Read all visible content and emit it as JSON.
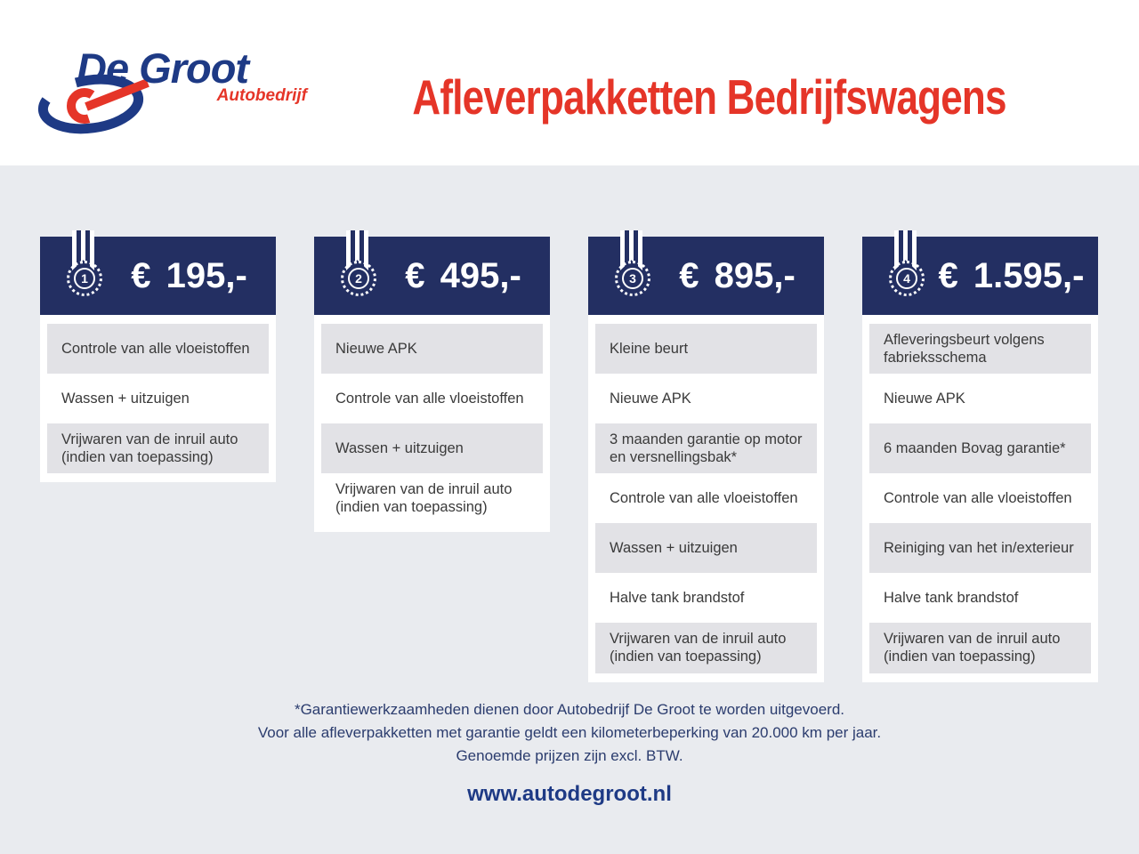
{
  "brand": {
    "name": "De Groot",
    "subtitle": "Autobedrijf"
  },
  "title": "Afleverpakketten Bedrijfswagens",
  "packages": [
    {
      "number": "1",
      "price": "€ 195,-",
      "items": [
        "Controle van alle vloeistoffen",
        "Wassen + uitzuigen",
        "Vrijwaren van de inruil auto (indien van toepassing)"
      ]
    },
    {
      "number": "2",
      "price": "€ 495,-",
      "items": [
        "Nieuwe APK",
        "Controle van alle vloeistoffen",
        "Wassen + uitzuigen",
        "Vrijwaren van de inruil auto (indien van toepassing)"
      ]
    },
    {
      "number": "3",
      "price": "€ 895,-",
      "items": [
        "Kleine beurt",
        "Nieuwe APK",
        "3 maanden garantie op motor en versnellingsbak*",
        "Controle van alle vloeistoffen",
        "Wassen + uitzuigen",
        "Halve tank brandstof",
        "Vrijwaren van de inruil auto (indien van toepassing)"
      ]
    },
    {
      "number": "4",
      "price": "€ 1.595,-",
      "items": [
        "Afleveringsbeurt volgens fabrieksschema",
        "Nieuwe APK",
        "6 maanden Bovag garantie*",
        "Controle van alle vloeistoffen",
        "Reiniging van het in/exterieur",
        "Halve tank brandstof",
        "Vrijwaren van de inruil auto (indien van toepassing)"
      ]
    }
  ],
  "footnotes": [
    "*Garantiewerkzaamheden dienen door Autobedrijf De Groot te worden uitgevoerd.",
    "Voor alle afleverpakketten met garantie geldt een kilometerbeperking van 20.000 km per jaar.",
    "Genoemde prijzen zijn excl. BTW."
  ],
  "website": "www.autodegroot.nl",
  "colors": {
    "navy": "#232f62",
    "logo_blue": "#1e3a85",
    "red": "#e53528",
    "row_gray": "#e2e2e6",
    "page_bg": "#e9ebef",
    "text_dark": "#3a3a3a",
    "footer_navy": "#2b3c6e"
  }
}
